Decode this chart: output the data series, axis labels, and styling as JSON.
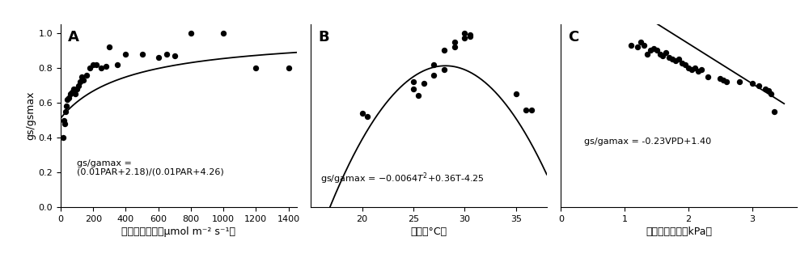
{
  "panel_A": {
    "label": "A",
    "scatter_x": [
      15,
      20,
      25,
      30,
      35,
      40,
      50,
      60,
      70,
      80,
      90,
      100,
      110,
      120,
      130,
      140,
      160,
      180,
      200,
      220,
      250,
      280,
      300,
      350,
      400,
      500,
      600,
      650,
      700,
      800,
      1000,
      1200,
      1400
    ],
    "scatter_y": [
      0.4,
      0.5,
      0.48,
      0.55,
      0.58,
      0.62,
      0.63,
      0.65,
      0.66,
      0.68,
      0.65,
      0.68,
      0.7,
      0.72,
      0.75,
      0.73,
      0.76,
      0.8,
      0.82,
      0.82,
      0.8,
      0.81,
      0.92,
      0.82,
      0.88,
      0.88,
      0.86,
      0.88,
      0.87,
      1.0,
      1.0,
      0.8,
      0.8
    ],
    "equation_line1": "gs/gamax =",
    "equation_line2": "(0.01PAR+2.18)/(0.01PAR+4.26)",
    "xlabel": "光和有效辐射（μmol m⁻² s⁻¹）",
    "ylabel": "gs/gsmax",
    "xlim": [
      0,
      1450
    ],
    "ylim": [
      0.0,
      1.05
    ],
    "xticks": [
      0,
      200,
      400,
      600,
      800,
      1000,
      1200,
      1400
    ],
    "yticks": [
      0.0,
      0.2,
      0.4,
      0.6,
      0.8,
      1.0
    ]
  },
  "panel_B": {
    "label": "B",
    "scatter_x": [
      20.0,
      20.5,
      25.0,
      25.0,
      25.5,
      26.0,
      27.0,
      27.0,
      28.0,
      28.0,
      29.0,
      29.0,
      30.0,
      30.0,
      30.5,
      30.5,
      35.0,
      36.0,
      36.5
    ],
    "scatter_y": [
      0.54,
      0.52,
      0.72,
      0.68,
      0.64,
      0.71,
      0.76,
      0.82,
      0.79,
      0.9,
      0.92,
      0.95,
      0.97,
      1.0,
      0.99,
      0.98,
      0.65,
      0.56,
      0.56
    ],
    "xlabel": "温度（°C）",
    "xlim": [
      15,
      38
    ],
    "ylim": [
      0.0,
      1.05
    ],
    "xticks": [
      20,
      25,
      30,
      35
    ],
    "yticks": []
  },
  "panel_C": {
    "label": "C",
    "scatter_x": [
      1.1,
      1.2,
      1.25,
      1.3,
      1.35,
      1.4,
      1.45,
      1.5,
      1.55,
      1.6,
      1.65,
      1.7,
      1.75,
      1.8,
      1.85,
      1.9,
      1.95,
      2.0,
      2.05,
      2.1,
      2.15,
      2.2,
      2.3,
      2.5,
      2.55,
      2.6,
      2.8,
      3.0,
      3.1,
      3.2,
      3.25,
      3.3,
      3.35
    ],
    "scatter_y": [
      0.93,
      0.92,
      0.95,
      0.93,
      0.88,
      0.9,
      0.91,
      0.9,
      0.88,
      0.87,
      0.89,
      0.86,
      0.85,
      0.84,
      0.85,
      0.83,
      0.82,
      0.8,
      0.79,
      0.8,
      0.78,
      0.79,
      0.75,
      0.74,
      0.73,
      0.72,
      0.72,
      0.71,
      0.7,
      0.68,
      0.67,
      0.65,
      0.55
    ],
    "xlabel": "饱和水汽压差（kPa）",
    "xlim": [
      0,
      3.7
    ],
    "ylim": [
      0.0,
      1.05
    ],
    "xticks": [
      0,
      1,
      2,
      3
    ],
    "yticks": []
  },
  "figure_bg": "#ffffff",
  "scatter_color": "#000000",
  "line_color": "#000000",
  "scatter_size": 28,
  "line_width": 1.3
}
